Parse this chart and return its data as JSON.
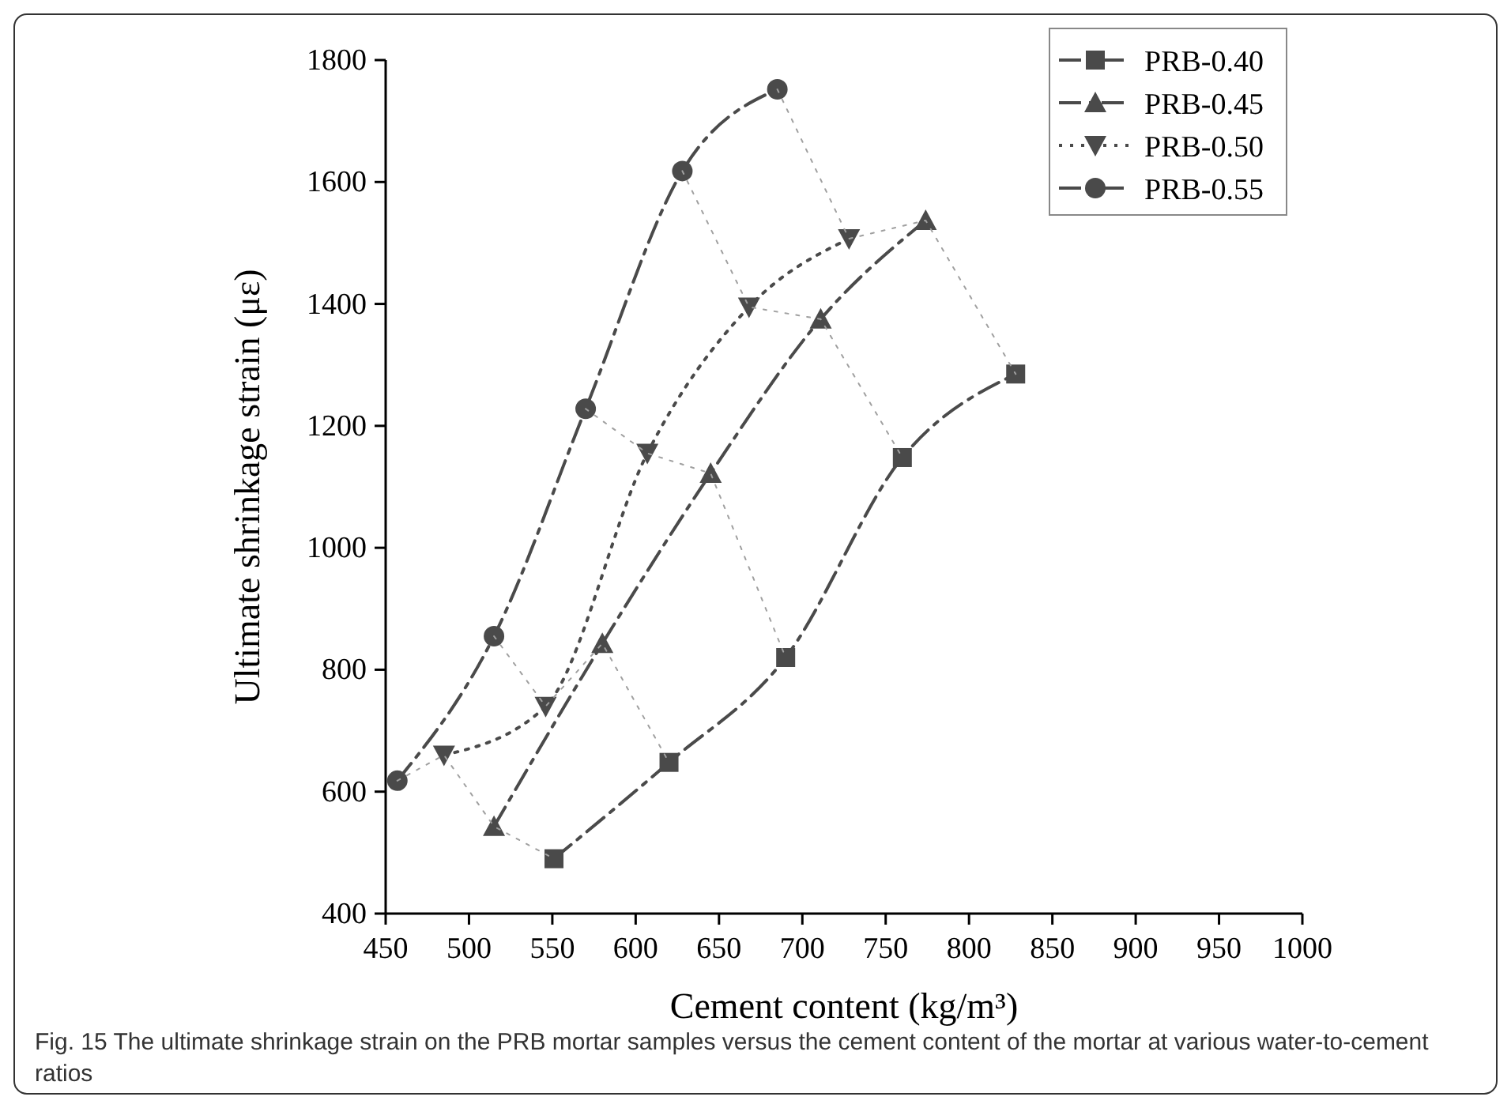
{
  "chart_data": {
    "type": "line",
    "xlabel": "Cement content (kg/m³)",
    "ylabel": "Ultimate shrinkage strain (με)",
    "xlim": [
      450,
      1000
    ],
    "xticks": [
      450,
      500,
      550,
      600,
      650,
      700,
      750,
      800,
      850,
      900,
      950,
      1000
    ],
    "ylim": [
      400,
      1800
    ],
    "yticks": [
      400,
      600,
      800,
      1000,
      1200,
      1400,
      1600,
      1800
    ],
    "legend": "top right",
    "grid": false,
    "series": [
      {
        "name": "PRB-0.40",
        "color": "#4a4a4a",
        "marker": "square",
        "line_style": "dashed",
        "x": [
          551,
          620,
          690,
          760,
          828
        ],
        "values": [
          490,
          648,
          820,
          1148,
          1285
        ]
      },
      {
        "name": "PRB-0.45",
        "color": "#4a4a4a",
        "marker": "triangle",
        "line_style": "dashed",
        "x": [
          515,
          580,
          645,
          711,
          774
        ],
        "values": [
          543,
          843,
          1122,
          1375,
          1537
        ]
      },
      {
        "name": "PRB-0.50",
        "color": "#4a4a4a",
        "marker": "triangle-down",
        "line_style": "dotted",
        "x": [
          485,
          546,
          607,
          668,
          728
        ],
        "values": [
          660,
          740,
          1155,
          1395,
          1507
        ]
      },
      {
        "name": "PRB-0.55",
        "color": "#4a4a4a",
        "marker": "circle",
        "line_style": "dashed",
        "x": [
          457,
          515,
          570,
          628,
          685
        ],
        "values": [
          618,
          855,
          1228,
          1618,
          1752
        ]
      },
      {
        "color": "#a0a0a0",
        "marker": "none",
        "line_style": "dotted",
        "x": [
          457,
          485,
          515,
          551
        ],
        "values": [
          618,
          660,
          543,
          490
        ]
      },
      {
        "color": "#a0a0a0",
        "marker": "none",
        "line_style": "dotted",
        "x": [
          515,
          546,
          580,
          620
        ],
        "values": [
          855,
          740,
          843,
          648
        ]
      },
      {
        "color": "#a0a0a0",
        "marker": "none",
        "line_style": "dotted",
        "x": [
          570,
          607,
          645,
          690
        ],
        "values": [
          1228,
          1155,
          1122,
          820
        ]
      },
      {
        "color": "#a0a0a0",
        "marker": "none",
        "line_style": "dotted",
        "x": [
          628,
          668,
          711,
          760
        ],
        "values": [
          1618,
          1395,
          1375,
          1148
        ]
      },
      {
        "color": "#a0a0a0",
        "marker": "none",
        "line_style": "dotted",
        "x": [
          685,
          728,
          774,
          828
        ],
        "values": [
          1752,
          1507,
          1537,
          1285
        ]
      }
    ],
    "annotations": [
      "Fig. 15 The ultimate shrinkage strain on the PRB mortar samples versus the cement content of the mortar at various water-to-cement ratios"
    ]
  }
}
